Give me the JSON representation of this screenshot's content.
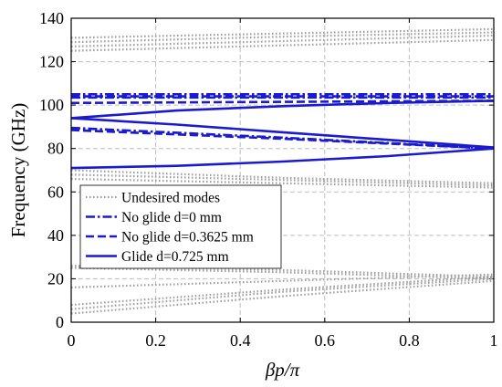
{
  "chart_data": {
    "type": "line",
    "xlabel": "βp/π",
    "ylabel": "Frequency (GHz)",
    "xlim": [
      0,
      1
    ],
    "ylim": [
      0,
      140
    ],
    "x_ticks": [
      "0",
      "0.2",
      "0.4",
      "0.6",
      "0.8",
      "1"
    ],
    "y_ticks": [
      "0",
      "20",
      "40",
      "60",
      "80",
      "100",
      "120",
      "140"
    ],
    "grid": true,
    "legend_position": "lower-left",
    "legend": [
      {
        "text": "Undesired modes",
        "style": "dotted",
        "color": "#a0a0a0"
      },
      {
        "text": "No glide d=0 mm",
        "style": "dashdot",
        "color": "#1a1ad0"
      },
      {
        "text": "No glide d=0.3625 mm",
        "style": "dashed",
        "color": "#1a1ad0"
      },
      {
        "text": "Glide d=0.725 mm",
        "style": "solid",
        "color": "#1a1ad0"
      }
    ],
    "series": [
      {
        "group": "Undesired modes",
        "style": "dotted",
        "x": [
          0,
          0.5,
          1
        ],
        "y": [
          4,
          12,
          19
        ]
      },
      {
        "group": "Undesired modes",
        "style": "dotted",
        "x": [
          0,
          0.5,
          1
        ],
        "y": [
          6,
          14,
          20
        ]
      },
      {
        "group": "Undesired modes",
        "style": "dotted",
        "x": [
          0,
          0.5,
          1
        ],
        "y": [
          8,
          15,
          21
        ]
      },
      {
        "group": "Undesired modes",
        "style": "dotted",
        "x": [
          0,
          0.5,
          1
        ],
        "y": [
          16,
          19,
          22
        ]
      },
      {
        "group": "Undesired modes",
        "style": "dotted",
        "x": [
          0,
          0.5,
          1
        ],
        "y": [
          25,
          23,
          20
        ]
      },
      {
        "group": "Undesired modes",
        "style": "dotted",
        "x": [
          0,
          0.5,
          1
        ],
        "y": [
          26,
          24,
          21
        ]
      },
      {
        "group": "Undesired modes",
        "style": "dotted",
        "x": [
          0,
          0.5,
          1
        ],
        "y": [
          66,
          64,
          62
        ]
      },
      {
        "group": "Undesired modes",
        "style": "dotted",
        "x": [
          0,
          0.5,
          1
        ],
        "y": [
          68,
          65.5,
          63
        ]
      },
      {
        "group": "Undesired modes",
        "style": "dotted",
        "x": [
          0,
          0.5,
          1
        ],
        "y": [
          70,
          66.5,
          64
        ]
      },
      {
        "group": "Undesired modes",
        "style": "dotted",
        "x": [
          0,
          0.5,
          1
        ],
        "y": [
          125,
          127.5,
          130
        ]
      },
      {
        "group": "Undesired modes",
        "style": "dotted",
        "x": [
          0,
          0.5,
          1
        ],
        "y": [
          127,
          129.5,
          132
        ]
      },
      {
        "group": "Undesired modes",
        "style": "dotted",
        "x": [
          0,
          0.5,
          1
        ],
        "y": [
          129,
          131.5,
          133.5
        ]
      },
      {
        "group": "Undesired modes",
        "style": "dotted",
        "x": [
          0,
          0.5,
          1
        ],
        "y": [
          131,
          133,
          135
        ]
      },
      {
        "group": "No glide d=0 mm",
        "style": "dashdot",
        "x": [
          0,
          1
        ],
        "y": [
          105,
          105
        ]
      },
      {
        "group": "No glide d=0 mm",
        "style": "dashdot",
        "x": [
          0,
          1
        ],
        "y": [
          103.5,
          103.5
        ]
      },
      {
        "group": "No glide d=0 mm",
        "style": "dashdot",
        "x": [
          0,
          0.5,
          1
        ],
        "y": [
          89.5,
          85,
          80
        ]
      },
      {
        "group": "No glide d=0.3625 mm",
        "style": "dashed",
        "x": [
          0,
          1
        ],
        "y": [
          104,
          104
        ]
      },
      {
        "group": "No glide d=0.3625 mm",
        "style": "dashed",
        "x": [
          0,
          0.5,
          1
        ],
        "y": [
          101,
          101.5,
          102
        ]
      },
      {
        "group": "No glide d=0.3625 mm",
        "style": "dashed",
        "x": [
          0,
          0.5,
          1
        ],
        "y": [
          88.5,
          84.5,
          80
        ]
      },
      {
        "group": "Glide d=0.725 mm",
        "style": "solid",
        "x": [
          0,
          0.25,
          0.5,
          0.75,
          1
        ],
        "y": [
          94,
          97.5,
          99.5,
          101,
          102
        ]
      },
      {
        "group": "Glide d=0.725 mm",
        "style": "solid",
        "x": [
          0,
          0.25,
          0.5,
          0.75,
          1
        ],
        "y": [
          94,
          91,
          87.5,
          84,
          80.5
        ]
      },
      {
        "group": "Glide d=0.725 mm",
        "style": "solid",
        "x": [
          0,
          0.25,
          0.5,
          0.75,
          1
        ],
        "y": [
          71,
          72,
          74,
          76.5,
          80
        ]
      }
    ]
  }
}
